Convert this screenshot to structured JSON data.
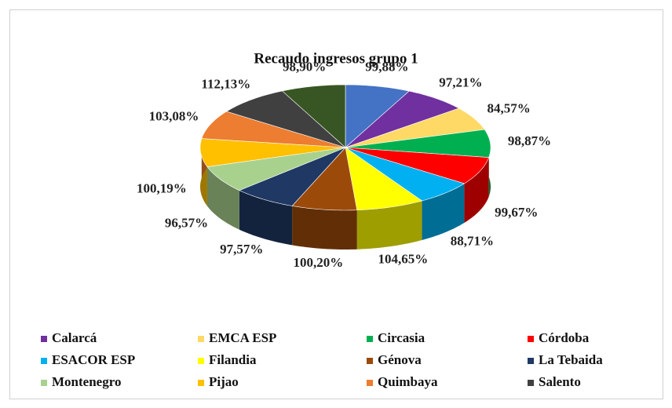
{
  "chart_data": {
    "type": "pie",
    "title": "Recaudo ingresos grupo 1",
    "categories": [
      null,
      "Calarcá",
      "EMCA ESP",
      "Circasia",
      "Córdoba",
      "ESACOR ESP",
      "Filandia",
      "Génova",
      "La Tebaida",
      "Montenegro",
      "Pijao",
      "Quimbaya",
      "Salento",
      null
    ],
    "values": [
      99.88,
      97.21,
      84.57,
      98.87,
      99.67,
      88.71,
      104.65,
      100.2,
      97.57,
      96.57,
      100.19,
      103.08,
      112.13,
      98.9
    ],
    "value_labels": [
      "99,88%",
      "97,21%",
      "84,57%",
      "98,87%",
      "99,67%",
      "88,71%",
      "104,65%",
      "100,20%",
      "97,57%",
      "96,57%",
      "100,19%",
      "103,08%",
      "112,13%",
      "98,90%"
    ],
    "colors": [
      "#4472c4",
      "#7030a0",
      "#ffd966",
      "#00b050",
      "#ff0000",
      "#00b0f0",
      "#ffff00",
      "#9c4a0a",
      "#1f3864",
      "#a9d18e",
      "#ffc000",
      "#ed7d31",
      "#404040",
      "#375623"
    ],
    "legend": "bottom"
  }
}
